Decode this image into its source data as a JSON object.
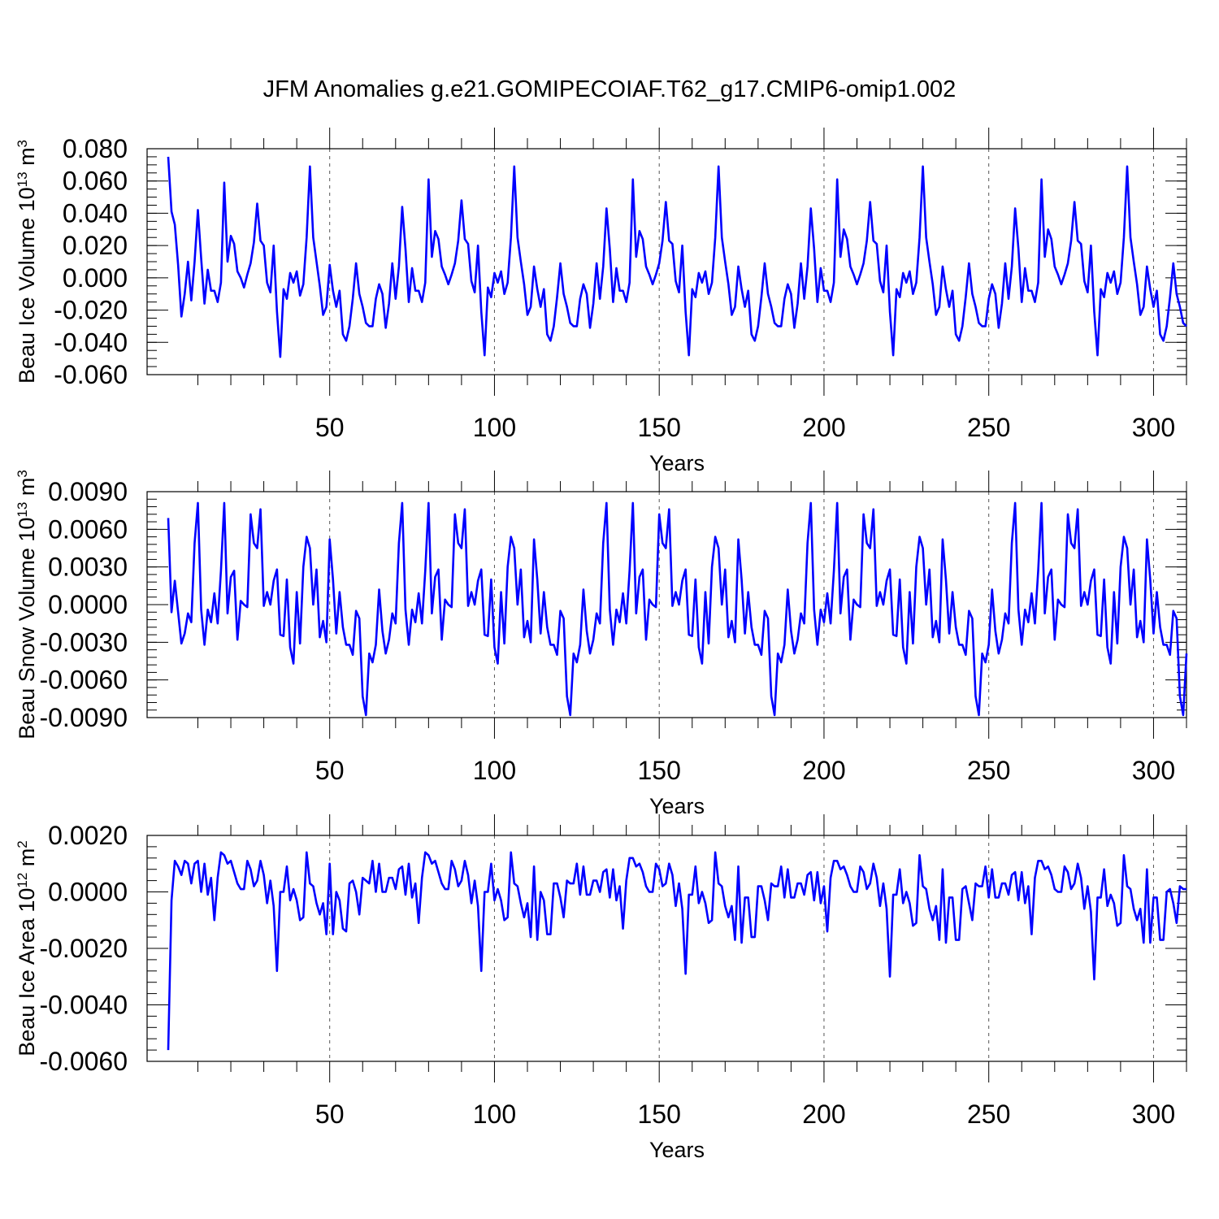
{
  "figure": {
    "title": "JFM Anomalies g.e21.GOMIPECOIAF.T62_g17.CMIP6-omip1.002",
    "line_color": "#0000ff"
  },
  "chart_data": [
    {
      "type": "line",
      "name": "ice-volume",
      "xlabel": "Years",
      "ylabel": {
        "pre": "Beau Ice Volume 10",
        "sup": "13",
        "mid": " m",
        "sup2": "3"
      },
      "xlim": [
        1,
        310
      ],
      "ylim": [
        -0.06,
        0.08
      ],
      "xticks": [
        50,
        100,
        150,
        200,
        250,
        300
      ],
      "xtick_labels": [
        "50",
        "100",
        "150",
        "200",
        "250",
        "300"
      ],
      "yticks": [
        -0.06,
        -0.04,
        -0.02,
        0.0,
        0.02,
        0.04,
        0.06,
        0.08
      ],
      "ytick_labels": [
        "-0.060",
        "-0.040",
        "-0.020",
        "0.000",
        "0.020",
        "0.040",
        "0.060",
        "0.080"
      ],
      "yminor_step": 0.005,
      "values": [
        0.075,
        0.041,
        0.033,
        0.008,
        -0.024,
        -0.01,
        0.01,
        -0.014,
        0.01,
        0.042,
        0.012,
        -0.016,
        0.005,
        -0.008,
        -0.008,
        -0.015,
        -0.003,
        0.059,
        0.01,
        0.026,
        0.021,
        0.004,
        0.0,
        -0.006,
        0.002,
        0.009,
        0.022,
        0.046,
        0.023,
        0.02,
        -0.003,
        -0.009,
        0.02,
        -0.021,
        -0.049,
        -0.007,
        -0.013,
        0.003,
        -0.003,
        0.004,
        -0.011,
        -0.004,
        0.025,
        0.069,
        0.025,
        0.01,
        -0.005,
        -0.023,
        -0.018,
        0.008,
        -0.008,
        -0.018,
        -0.008,
        -0.035,
        -0.039,
        -0.03,
        -0.013,
        0.009,
        -0.01,
        -0.018,
        -0.028,
        -0.03,
        -0.03,
        -0.013,
        -0.004,
        -0.01,
        -0.031,
        -0.016,
        0.009,
        -0.013,
        0.007,
        0.044,
        0.018,
        -0.015,
        0.006,
        -0.008,
        -0.008,
        -0.015,
        -0.003,
        0.061,
        0.013,
        0.029,
        0.024,
        0.007,
        0.002,
        -0.004,
        0.002,
        0.009,
        0.023,
        0.048,
        0.024,
        0.021,
        -0.002,
        -0.009,
        0.02,
        -0.021,
        -0.048,
        -0.006,
        -0.012,
        0.003,
        -0.003,
        0.004,
        -0.01,
        -0.003,
        0.025,
        0.069,
        0.025,
        0.01,
        -0.004,
        -0.023,
        -0.018,
        0.007,
        -0.007,
        -0.018,
        -0.007,
        -0.035,
        -0.039,
        -0.03,
        -0.012,
        0.009,
        -0.01,
        -0.018,
        -0.028,
        -0.03,
        -0.03,
        -0.013,
        -0.004,
        -0.01,
        -0.031,
        -0.016,
        0.009,
        -0.013,
        0.007,
        0.043,
        0.018,
        -0.015,
        0.006,
        -0.008,
        -0.008,
        -0.015,
        -0.003,
        0.061,
        0.013,
        0.029,
        0.024,
        0.007,
        0.002,
        -0.004,
        0.002,
        0.009,
        0.023,
        0.047,
        0.023,
        0.021,
        -0.002,
        -0.009,
        0.02,
        -0.021,
        -0.048,
        -0.007,
        -0.012,
        0.003,
        -0.003,
        0.004,
        -0.01,
        -0.003,
        0.025,
        0.069,
        0.025,
        0.01,
        -0.004,
        -0.023,
        -0.018,
        0.007,
        -0.007,
        -0.018,
        -0.008,
        -0.035,
        -0.039,
        -0.03,
        -0.012,
        0.009,
        -0.01,
        -0.018,
        -0.028,
        -0.03,
        -0.03,
        -0.013,
        -0.004,
        -0.01,
        -0.031,
        -0.016,
        0.009,
        -0.013,
        0.007,
        0.043,
        0.018,
        -0.015,
        0.006,
        -0.008,
        -0.008,
        -0.015,
        -0.003,
        0.061,
        0.013,
        0.03,
        0.024,
        0.007,
        0.002,
        -0.004,
        0.002,
        0.009,
        0.023,
        0.047,
        0.023,
        0.021,
        -0.002,
        -0.009,
        0.02,
        -0.021,
        -0.048,
        -0.007,
        -0.012,
        0.003,
        -0.003,
        0.004,
        -0.01,
        -0.003,
        0.025,
        0.069,
        0.025,
        0.01,
        -0.004,
        -0.023,
        -0.018,
        0.007,
        -0.007,
        -0.018,
        -0.008,
        -0.035,
        -0.039,
        -0.03,
        -0.012,
        0.009,
        -0.01,
        -0.018,
        -0.028,
        -0.03,
        -0.03,
        -0.013,
        -0.004,
        -0.01,
        -0.031,
        -0.016,
        0.009,
        -0.013,
        0.007,
        0.043,
        0.018,
        -0.015,
        0.006,
        -0.008,
        -0.008,
        -0.015,
        -0.003,
        0.061,
        0.013,
        0.03,
        0.024,
        0.007,
        0.002,
        -0.004,
        0.002,
        0.009,
        0.023,
        0.047,
        0.023,
        0.021,
        -0.002,
        -0.009,
        0.02,
        -0.021,
        -0.048,
        -0.007,
        -0.012,
        0.003,
        -0.003,
        0.004,
        -0.01,
        -0.003,
        0.025,
        0.069,
        0.025,
        0.01,
        -0.004,
        -0.023,
        -0.018,
        0.007,
        -0.007,
        -0.018,
        -0.008,
        -0.035,
        -0.039,
        -0.03,
        -0.012,
        0.009,
        -0.01,
        -0.018,
        -0.028,
        -0.03
      ]
    },
    {
      "type": "line",
      "name": "snow-volume",
      "xlabel": "Years",
      "ylabel": {
        "pre": "Beau Snow Volume 10",
        "sup": "13",
        "mid": " m",
        "sup2": "3"
      },
      "xlim": [
        1,
        310
      ],
      "ylim": [
        -0.009,
        0.009
      ],
      "xticks": [
        50,
        100,
        150,
        200,
        250,
        300
      ],
      "xtick_labels": [
        "50",
        "100",
        "150",
        "200",
        "250",
        "300"
      ],
      "yticks": [
        -0.009,
        -0.006,
        -0.003,
        0.0,
        0.003,
        0.006,
        0.009
      ],
      "ytick_labels": [
        "-0.0090",
        "-0.0060",
        "-0.0030",
        "0.0000",
        "0.0030",
        "0.0060",
        "0.0090"
      ],
      "yminor_step": 0.0006,
      "values": [
        0.0069,
        -0.0006,
        0.0019,
        -0.0006,
        -0.0031,
        -0.0023,
        -0.0007,
        -0.0014,
        0.0049,
        0.0081,
        -0.0004,
        -0.0032,
        -0.0004,
        -0.0014,
        0.0009,
        -0.0015,
        0.0027,
        0.0081,
        -0.0007,
        0.0022,
        0.0027,
        -0.0028,
        0.0003,
        0.0,
        -0.0002,
        0.0072,
        0.0049,
        0.0045,
        0.0076,
        -0.0001,
        0.001,
        0.0,
        0.0019,
        0.0028,
        -0.0024,
        -0.0025,
        0.002,
        -0.0034,
        -0.0047,
        0.001,
        -0.0031,
        0.003,
        0.0054,
        0.0045,
        0.0,
        0.0028,
        -0.0026,
        -0.0013,
        -0.003,
        0.0052,
        0.002,
        -0.0023,
        0.001,
        -0.0018,
        -0.0032,
        -0.0032,
        -0.004,
        -0.0005,
        -0.0011,
        -0.0073,
        -0.0088,
        -0.0039,
        -0.0046,
        -0.0032,
        0.0012,
        -0.0021,
        -0.0039,
        -0.0028,
        -0.0007,
        -0.0015,
        0.0049,
        0.0081,
        -0.0004,
        -0.0032,
        -0.0004,
        -0.0014,
        0.0009,
        -0.0015,
        0.0027,
        0.0081,
        -0.0007,
        0.0022,
        0.0028,
        -0.0028,
        0.0004,
        0.0,
        -0.0002,
        0.0072,
        0.0049,
        0.0045,
        0.0076,
        -0.0001,
        0.001,
        0.0,
        0.0019,
        0.0028,
        -0.0024,
        -0.0025,
        0.002,
        -0.0034,
        -0.0047,
        0.001,
        -0.0031,
        0.003,
        0.0054,
        0.0045,
        0.0,
        0.0028,
        -0.0026,
        -0.0013,
        -0.003,
        0.0052,
        0.002,
        -0.0023,
        0.001,
        -0.0018,
        -0.0032,
        -0.0032,
        -0.004,
        -0.0005,
        -0.0011,
        -0.0073,
        -0.0088,
        -0.0039,
        -0.0046,
        -0.0032,
        0.0012,
        -0.0021,
        -0.0039,
        -0.0028,
        -0.0007,
        -0.0015,
        0.0049,
        0.0081,
        -0.0004,
        -0.0032,
        -0.0004,
        -0.0014,
        0.0009,
        -0.0015,
        0.0027,
        0.0081,
        -0.0007,
        0.0022,
        0.0028,
        -0.0028,
        0.0004,
        0.0,
        -0.0002,
        0.0072,
        0.0049,
        0.0045,
        0.0076,
        -0.0001,
        0.001,
        0.0,
        0.0019,
        0.0028,
        -0.0024,
        -0.0025,
        0.002,
        -0.0034,
        -0.0047,
        0.001,
        -0.0031,
        0.003,
        0.0054,
        0.0045,
        0.0,
        0.0028,
        -0.0026,
        -0.0013,
        -0.003,
        0.0052,
        0.002,
        -0.0023,
        0.001,
        -0.0018,
        -0.0032,
        -0.0032,
        -0.004,
        -0.0005,
        -0.0011,
        -0.0073,
        -0.0088,
        -0.0039,
        -0.0046,
        -0.0032,
        0.0012,
        -0.0021,
        -0.0039,
        -0.0028,
        -0.0007,
        -0.0015,
        0.0049,
        0.0081,
        -0.0004,
        -0.0032,
        -0.0004,
        -0.0014,
        0.0009,
        -0.0015,
        0.0027,
        0.0081,
        -0.0007,
        0.0022,
        0.0028,
        -0.0028,
        0.0004,
        0.0,
        -0.0002,
        0.0072,
        0.0049,
        0.0045,
        0.0076,
        -0.0001,
        0.001,
        0.0,
        0.0019,
        0.0028,
        -0.0024,
        -0.0025,
        0.002,
        -0.0034,
        -0.0047,
        0.001,
        -0.0031,
        0.003,
        0.0054,
        0.0045,
        0.0,
        0.0028,
        -0.0026,
        -0.0013,
        -0.003,
        0.0052,
        0.002,
        -0.0023,
        0.001,
        -0.0018,
        -0.0032,
        -0.0032,
        -0.004,
        -0.0005,
        -0.0011,
        -0.0073,
        -0.0088,
        -0.0039,
        -0.0046,
        -0.0032,
        0.0012,
        -0.0021,
        -0.0039,
        -0.0028,
        -0.0007,
        -0.0015,
        0.0049,
        0.0081,
        -0.0004,
        -0.0032,
        -0.0004,
        -0.0014,
        0.0009,
        -0.0015,
        0.0027,
        0.0081,
        -0.0007,
        0.0022,
        0.0028,
        -0.0028,
        0.0004,
        0.0,
        -0.0002,
        0.0072,
        0.0049,
        0.0045,
        0.0076,
        -0.0001,
        0.001,
        0.0,
        0.0019,
        0.0028,
        -0.0024,
        -0.0025,
        0.002,
        -0.0034,
        -0.0047,
        0.001,
        -0.0031,
        0.003,
        0.0054,
        0.0045,
        0.0,
        0.0028,
        -0.0026,
        -0.0013,
        -0.003,
        0.0052,
        0.002,
        -0.0023,
        0.001,
        -0.0018,
        -0.0032,
        -0.0032,
        -0.004,
        -0.0005,
        -0.0011,
        -0.0073,
        -0.0088,
        -0.0039
      ]
    },
    {
      "type": "line",
      "name": "ice-area",
      "xlabel": "Years",
      "ylabel": {
        "pre": "Beau Ice Area 10",
        "sup": "12",
        "mid": " m",
        "sup2": "2"
      },
      "xlim": [
        1,
        310
      ],
      "ylim": [
        -0.006,
        0.002
      ],
      "xticks": [
        50,
        100,
        150,
        200,
        250,
        300
      ],
      "xtick_labels": [
        "50",
        "100",
        "150",
        "200",
        "250",
        "300"
      ],
      "yticks": [
        -0.006,
        -0.004,
        -0.002,
        0.0,
        0.002
      ],
      "ytick_labels": [
        "-0.0060",
        "-0.0040",
        "-0.0020",
        "0.0000",
        "0.0020"
      ],
      "yminor_step": 0.0004,
      "values": [
        -0.0056,
        -0.0003,
        0.0011,
        0.0009,
        0.0006,
        0.0011,
        0.001,
        0.0003,
        0.001,
        0.0011,
        0.0,
        0.001,
        -0.0001,
        0.0005,
        -0.001,
        0.0005,
        0.0014,
        0.0013,
        0.001,
        0.0011,
        0.0007,
        0.0003,
        0.0001,
        0.0001,
        0.0011,
        0.0008,
        0.0002,
        0.0004,
        0.0011,
        0.0006,
        -0.0004,
        0.0004,
        -0.0005,
        -0.0028,
        0.0,
        0.0,
        0.0009,
        -0.0003,
        0.0001,
        -0.0003,
        -0.001,
        -0.0009,
        0.0014,
        0.0003,
        0.0002,
        -0.0004,
        -0.0008,
        -0.0004,
        -0.0015,
        0.001,
        -0.0015,
        0.0,
        -0.0003,
        -0.0013,
        -0.0014,
        0.0003,
        0.0004,
        0.0,
        -0.0008,
        0.0005,
        0.0004,
        0.0003,
        0.0011,
        0.0,
        0.001,
        0.0,
        0.0,
        0.0005,
        0.0005,
        0.0001,
        0.0008,
        0.0009,
        -0.0001,
        0.001,
        -0.0002,
        0.0003,
        -0.0011,
        0.0005,
        0.0014,
        0.0013,
        0.001,
        0.0011,
        0.0007,
        0.0003,
        0.0001,
        0.0001,
        0.0011,
        0.0008,
        0.0002,
        0.0004,
        0.0011,
        0.0006,
        -0.0004,
        0.0004,
        -0.0005,
        -0.0028,
        0.0,
        0.0,
        0.001,
        -0.0003,
        0.0001,
        -0.0003,
        -0.001,
        -0.0009,
        0.0014,
        0.0003,
        0.0002,
        -0.0004,
        -0.0009,
        -0.0004,
        -0.0016,
        0.0009,
        -0.0017,
        0.0,
        -0.0003,
        -0.0015,
        -0.0015,
        0.0003,
        0.0003,
        -0.0002,
        -0.0009,
        0.0004,
        0.0003,
        0.0003,
        0.001,
        -0.0001,
        0.0009,
        -0.0001,
        -0.0001,
        0.0004,
        0.0004,
        0.0,
        0.0007,
        0.0008,
        -0.0002,
        0.0008,
        -0.0003,
        0.0002,
        -0.0013,
        0.0004,
        0.0012,
        0.0012,
        0.0009,
        0.001,
        0.0007,
        0.0002,
        0.0,
        0.0,
        0.001,
        0.0008,
        0.0002,
        0.0003,
        0.001,
        0.0006,
        -0.0005,
        0.0003,
        -0.0006,
        -0.0029,
        -0.0001,
        -0.0001,
        0.0009,
        -0.0004,
        0.0,
        -0.0004,
        -0.0011,
        -0.001,
        0.0014,
        0.0003,
        0.0002,
        -0.0005,
        -0.0009,
        -0.0005,
        -0.0017,
        0.0009,
        -0.0018,
        -0.0002,
        -0.0002,
        -0.0016,
        -0.0016,
        0.0002,
        0.0002,
        -0.0003,
        -0.001,
        0.0003,
        0.0002,
        0.0002,
        0.0009,
        -0.0002,
        0.0008,
        -0.0002,
        -0.0002,
        0.0003,
        0.0003,
        -0.0001,
        0.0006,
        0.0007,
        -0.0003,
        0.0007,
        -0.0004,
        0.0002,
        -0.0014,
        0.0005,
        0.0011,
        0.0011,
        0.0008,
        0.0009,
        0.0006,
        0.0002,
        0.0,
        0.0,
        0.0009,
        0.0007,
        0.0001,
        0.0003,
        0.001,
        0.0005,
        -0.0005,
        0.0003,
        -0.0006,
        -0.003,
        -0.0001,
        -0.0001,
        0.0008,
        -0.0004,
        0.0,
        -0.0004,
        -0.0012,
        -0.0011,
        0.0013,
        0.0002,
        0.0001,
        -0.0006,
        -0.001,
        -0.0005,
        -0.0017,
        0.0008,
        -0.0018,
        -0.0002,
        -0.0002,
        -0.0017,
        -0.0017,
        0.0001,
        0.0002,
        -0.0004,
        -0.001,
        0.0003,
        0.0002,
        0.0002,
        0.0009,
        -0.0002,
        0.0008,
        -0.0002,
        -0.0002,
        0.0003,
        0.0003,
        -0.0001,
        0.0006,
        0.0007,
        -0.0003,
        0.0007,
        -0.0004,
        0.0002,
        -0.0015,
        0.0005,
        0.0011,
        0.0011,
        0.0008,
        0.0009,
        0.0006,
        0.0001,
        0.0,
        0.0,
        0.0009,
        0.0007,
        0.0001,
        0.0003,
        0.001,
        0.0005,
        -0.0006,
        0.0002,
        -0.0007,
        -0.0031,
        -0.0002,
        -0.0002,
        0.0008,
        -0.0005,
        -0.0001,
        -0.0004,
        -0.0012,
        -0.0011,
        0.0013,
        0.0002,
        0.0001,
        -0.0006,
        -0.001,
        -0.0006,
        -0.0018,
        0.0008,
        -0.0018,
        -0.0002,
        -0.0002,
        -0.0017,
        -0.0017,
        0.0,
        0.0001,
        -0.0004,
        -0.0011,
        0.0002,
        0.0001,
        0.0001
      ]
    }
  ]
}
